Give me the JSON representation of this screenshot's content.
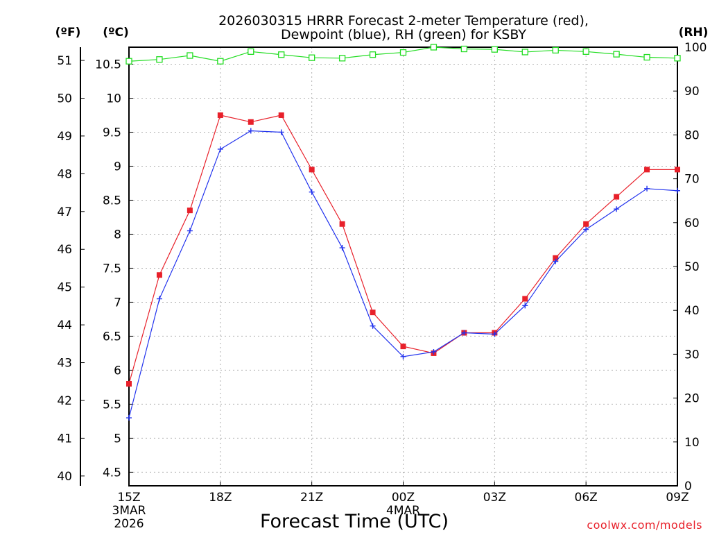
{
  "chart_data": {
    "type": "line",
    "title_line1": "2026030315 HRRR Forecast 2-meter Temperature (red),",
    "title_line2": "Dewpoint (blue), RH (green) for KSBY",
    "xlabel": "Forecast Time (UTC)",
    "credit": "coolwx.com/models",
    "units": {
      "fahrenheit": "(ºF)",
      "celsius": "(ºC)",
      "rh": "(RH)"
    },
    "x_hours": [
      0,
      1,
      2,
      3,
      4,
      5,
      6,
      7,
      8,
      9,
      10,
      11,
      12,
      13,
      14,
      15,
      16,
      17,
      18
    ],
    "x_ticks": [
      {
        "hour": 0,
        "label": "15Z",
        "sub1": "3MAR",
        "sub2": "2026"
      },
      {
        "hour": 3,
        "label": "18Z",
        "sub1": "",
        "sub2": ""
      },
      {
        "hour": 6,
        "label": "21Z",
        "sub1": "",
        "sub2": ""
      },
      {
        "hour": 9,
        "label": "00Z",
        "sub1": "4MAR",
        "sub2": ""
      },
      {
        "hour": 12,
        "label": "03Z",
        "sub1": "",
        "sub2": ""
      },
      {
        "hour": 15,
        "label": "06Z",
        "sub1": "",
        "sub2": ""
      },
      {
        "hour": 18,
        "label": "09Z",
        "sub1": "",
        "sub2": ""
      }
    ],
    "celsius_range": [
      4.3,
      10.75
    ],
    "celsius_ticks": [
      "4.5",
      "5",
      "5.5",
      "6",
      "6.5",
      "7",
      "7.5",
      "8",
      "8.5",
      "9",
      "9.5",
      "10",
      "10.5"
    ],
    "fahrenheit_ticks": [
      "40",
      "41",
      "42",
      "43",
      "44",
      "45",
      "46",
      "47",
      "48",
      "49",
      "50",
      "51"
    ],
    "rh_range": [
      0,
      100
    ],
    "rh_ticks": [
      "0",
      "10",
      "20",
      "30",
      "40",
      "50",
      "60",
      "70",
      "80",
      "90",
      "100"
    ],
    "series": [
      {
        "name": "Temperature",
        "color": "#e8202a",
        "marker": "square",
        "values": [
          5.8,
          7.4,
          8.35,
          9.75,
          9.65,
          9.75,
          8.95,
          8.15,
          6.85,
          6.35,
          6.25,
          6.55,
          6.55,
          7.05,
          7.65,
          8.15,
          8.55,
          8.95,
          8.95
        ]
      },
      {
        "name": "Dewpoint",
        "color": "#2233ee",
        "marker": "plus",
        "values": [
          5.3,
          7.05,
          8.05,
          9.25,
          9.52,
          9.5,
          8.62,
          7.8,
          6.65,
          6.2,
          6.27,
          6.55,
          6.53,
          6.95,
          7.6,
          8.07,
          8.37,
          8.67,
          8.64
        ]
      },
      {
        "name": "RH",
        "color": "#22dd22",
        "marker": "open-square",
        "axis": "rh",
        "values": [
          96.8,
          97.2,
          98.1,
          96.8,
          99.0,
          98.3,
          97.6,
          97.5,
          98.3,
          98.8,
          100.0,
          99.6,
          99.5,
          98.9,
          99.3,
          99.0,
          98.4,
          97.7,
          97.5
        ]
      }
    ]
  }
}
